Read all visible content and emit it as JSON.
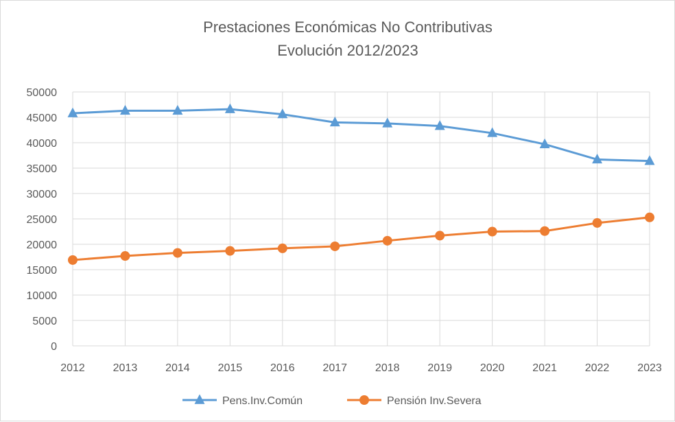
{
  "chart_data": {
    "type": "line",
    "title": "Prestaciones Económicas No Contributivas",
    "subtitle": "Evolución 2012/2023",
    "categories": [
      "2012",
      "2013",
      "2014",
      "2015",
      "2016",
      "2017",
      "2018",
      "2019",
      "2020",
      "2021",
      "2022",
      "2023"
    ],
    "y_ticks": [
      "0",
      "5000",
      "10000",
      "15000",
      "20000",
      "25000",
      "30000",
      "35000",
      "40000",
      "45000",
      "50000"
    ],
    "ylim": [
      0,
      50000
    ],
    "grid": true,
    "legend_position": "bottom",
    "series": [
      {
        "name": "Pens.Inv.Común",
        "color": "#5b9bd5",
        "marker": "triangle",
        "values": [
          45800,
          46300,
          46300,
          46600,
          45600,
          44000,
          43800,
          43300,
          41900,
          39700,
          36700,
          36400
        ]
      },
      {
        "name": "Pensión Inv.Severa",
        "color": "#ed7d31",
        "marker": "circle",
        "values": [
          16900,
          17700,
          18300,
          18700,
          19200,
          19600,
          20700,
          21700,
          22500,
          22600,
          24200,
          25300
        ]
      }
    ]
  }
}
